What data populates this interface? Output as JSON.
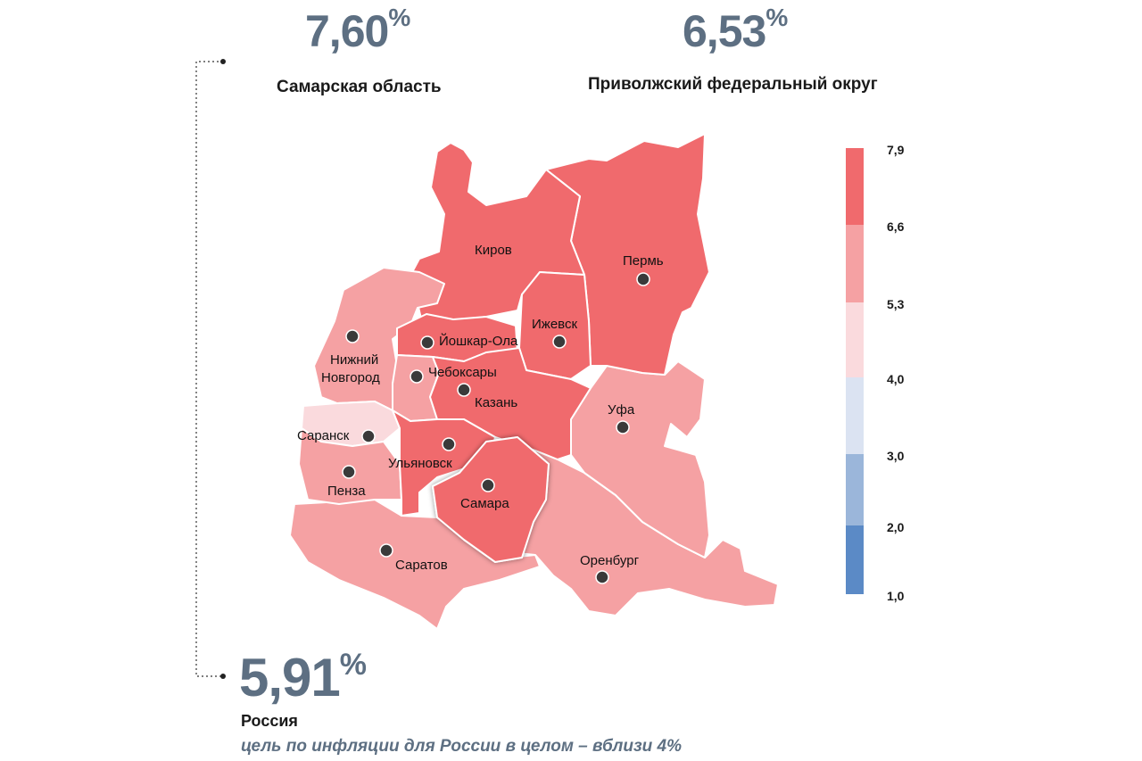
{
  "stats": {
    "samara": {
      "value": "7,60",
      "unit": "%",
      "caption": "Самарская область"
    },
    "pfo": {
      "value": "6,53",
      "unit": "%",
      "caption": "Приволжский федеральный округ"
    },
    "russia": {
      "value": "5,91",
      "unit": "%",
      "caption": "Россия"
    }
  },
  "goal_note": "цель по инфляции для России в целом – вблизи 4%",
  "cities": {
    "kirov": "Киров",
    "perm": "Пермь",
    "yoshkar_ola": "Йошкар-Ола",
    "izhevsk": "Ижевск",
    "nn_line1": "Нижний",
    "nn_line2": "Новгород",
    "cheboksary": "Чебоксары",
    "kazan": "Казань",
    "ufa": "Уфа",
    "saransk": "Саранск",
    "ulyanovsk": "Ульяновск",
    "penza": "Пенза",
    "samara": "Самара",
    "saratov": "Саратов",
    "orenburg": "Оренбург"
  },
  "legend": {
    "ticks": [
      "7,9",
      "6,6",
      "5,3",
      "4,0",
      "3,0",
      "2,0",
      "1,0"
    ],
    "colors": [
      "#f06a6d",
      "#f5a1a3",
      "#fadadd",
      "#dbe3f2",
      "#9bb6da",
      "#5b8ac6"
    ]
  },
  "colors": {
    "high": "#f06a6d",
    "mid": "#f5a1a3",
    "low": "#fadadd",
    "stat_text": "#5d6f82"
  }
}
